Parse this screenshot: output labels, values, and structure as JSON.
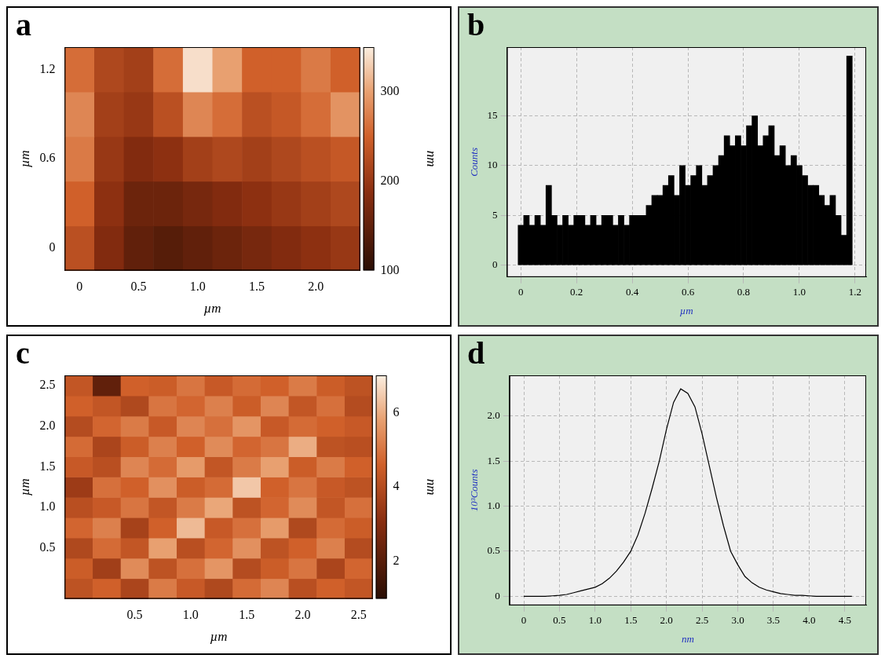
{
  "chart_data": [
    {
      "panel": "a",
      "type": "heatmap",
      "x": [
        0,
        0.25,
        0.5,
        0.75,
        1,
        1.25,
        1.5,
        1.75,
        2,
        2.25
      ],
      "y": [
        0,
        0.3,
        0.6,
        0.9,
        1.2
      ],
      "values": [
        [
          230,
          180,
          150,
          140,
          150,
          160,
          170,
          180,
          190,
          200
        ],
        [
          250,
          190,
          160,
          160,
          170,
          180,
          190,
          200,
          210,
          220
        ],
        [
          270,
          200,
          180,
          190,
          210,
          220,
          210,
          220,
          230,
          240
        ],
        [
          280,
          210,
          200,
          230,
          280,
          260,
          230,
          240,
          260,
          290
        ],
        [
          260,
          220,
          210,
          260,
          340,
          300,
          250,
          250,
          270,
          250
        ]
      ],
      "xlim": [
        -0.125,
        2.375
      ],
      "xticks": [
        0,
        0.5,
        {
          "value": 1,
          "label": "1.0"
        },
        1.5,
        {
          "value": 2,
          "label": "2.0"
        }
      ],
      "ylim": [
        -0.15,
        1.35
      ],
      "yticks": [
        0,
        0.6,
        1.2
      ],
      "x_label": "µm",
      "y_label": "µm",
      "colorbar": {
        "label": "nm",
        "range": [
          100,
          350
        ],
        "ticks": [
          100,
          200,
          300
        ]
      },
      "grid": false
    },
    {
      "panel": "b",
      "type": "bar",
      "x": [
        0,
        0.02,
        0.04,
        0.06,
        0.08,
        0.1,
        0.12,
        0.14,
        0.16,
        0.18,
        0.2,
        0.22,
        0.24,
        0.26,
        0.28,
        0.3,
        0.32,
        0.34,
        0.36,
        0.38,
        0.4,
        0.42,
        0.44,
        0.46,
        0.48,
        0.5,
        0.52,
        0.54,
        0.56,
        0.58,
        0.6,
        0.62,
        0.64,
        0.66,
        0.68,
        0.7,
        0.72,
        0.74,
        0.76,
        0.78,
        0.8,
        0.82,
        0.84,
        0.86,
        0.88,
        0.9,
        0.92,
        0.94,
        0.96,
        0.98,
        1,
        1.02,
        1.04,
        1.06,
        1.08,
        1.1,
        1.12,
        1.14,
        1.16,
        1.18
      ],
      "values": [
        4,
        5,
        4,
        5,
        4,
        8,
        5,
        4,
        5,
        4,
        5,
        5,
        4,
        5,
        4,
        5,
        5,
        4,
        5,
        4,
        5,
        5,
        5,
        6,
        7,
        7,
        8,
        9,
        7,
        10,
        8,
        9,
        10,
        8,
        9,
        10,
        11,
        13,
        12,
        13,
        12,
        14,
        15,
        12,
        13,
        14,
        11,
        12,
        10,
        11,
        10,
        9,
        8,
        8,
        7,
        6,
        7,
        5,
        3,
        21
      ],
      "color": "#000000",
      "xlim": [
        -0.05,
        1.24
      ],
      "xticks": [
        0,
        0.2,
        0.4,
        0.6,
        0.8,
        {
          "value": 1,
          "label": "1.0"
        },
        1.2
      ],
      "ylim": [
        -1.2,
        21.9
      ],
      "yticks": [
        0,
        5,
        10,
        15
      ],
      "x_label": "µm",
      "y_label": "Counts",
      "grid": true
    },
    {
      "panel": "c",
      "type": "heatmap",
      "x": [
        0,
        0.25,
        0.5,
        0.75,
        1,
        1.25,
        1.5,
        1.75,
        2,
        2.25,
        2.5
      ],
      "y": [
        0,
        0.25,
        0.5,
        0.75,
        1,
        1.25,
        1.5,
        1.75,
        2,
        2.25,
        2.5
      ],
      "values": [
        [
          4.2,
          4.6,
          3.8,
          5.1,
          4.4,
          3.9,
          4.8,
          5.3,
          4.1,
          4.6,
          4.3
        ],
        [
          4.5,
          3.6,
          5.4,
          4.2,
          4.9,
          5.6,
          4.0,
          4.5,
          5.0,
          3.8,
          4.7
        ],
        [
          3.9,
          4.8,
          4.3,
          5.8,
          4.1,
          4.7,
          5.5,
          4.2,
          4.6,
          5.2,
          4.0
        ],
        [
          4.7,
          5.2,
          3.7,
          4.6,
          6.2,
          4.4,
          4.9,
          5.7,
          3.9,
          4.8,
          4.5
        ],
        [
          4.1,
          4.4,
          5.0,
          4.3,
          5.1,
          5.9,
          4.2,
          4.7,
          5.4,
          4.3,
          4.9
        ],
        [
          3.5,
          4.9,
          4.6,
          5.5,
          4.5,
          4.8,
          6.4,
          4.6,
          5.0,
          4.4,
          4.2
        ],
        [
          4.4,
          4.1,
          5.3,
          4.8,
          5.7,
          4.3,
          5.1,
          5.8,
          4.5,
          5.1,
          4.6
        ],
        [
          4.8,
          3.8,
          4.5,
          5.2,
          4.6,
          5.4,
          4.7,
          5.0,
          6.0,
          4.2,
          4.1
        ],
        [
          4.0,
          4.7,
          5.1,
          4.4,
          5.3,
          4.9,
          5.6,
          4.4,
          4.8,
          4.6,
          4.4
        ],
        [
          4.6,
          4.3,
          3.9,
          5.0,
          4.7,
          5.2,
          4.5,
          5.3,
          4.3,
          4.9,
          4.0
        ],
        [
          4.3,
          2.2,
          4.6,
          4.5,
          5.0,
          4.4,
          4.8,
          4.6,
          5.1,
          4.5,
          4.2
        ]
      ],
      "xlim": [
        -0.125,
        2.625
      ],
      "xticks": [
        0.5,
        {
          "value": 1,
          "label": "1.0"
        },
        1.5,
        {
          "value": 2,
          "label": "2.0"
        },
        2.5
      ],
      "ylim": [
        -0.125,
        2.625
      ],
      "yticks": [
        0.5,
        {
          "value": 1,
          "label": "1.0"
        },
        1.5,
        {
          "value": 2,
          "label": "2.0"
        },
        2.5
      ],
      "x_label": "µm",
      "y_label": "µm",
      "colorbar": {
        "label": "nm",
        "range": [
          1,
          7
        ],
        "ticks": [
          2,
          4,
          6
        ]
      },
      "grid": false
    },
    {
      "panel": "d",
      "type": "line",
      "x": [
        0,
        0.1,
        0.2,
        0.3,
        0.4,
        0.5,
        0.6,
        0.7,
        0.8,
        0.9,
        1,
        1.1,
        1.2,
        1.3,
        1.4,
        1.5,
        1.6,
        1.7,
        1.8,
        1.9,
        2,
        2.1,
        2.2,
        2.3,
        2.4,
        2.5,
        2.6,
        2.7,
        2.8,
        2.9,
        3,
        3.1,
        3.2,
        3.3,
        3.4,
        3.5,
        3.6,
        3.7,
        3.8,
        3.9,
        4,
        4.1,
        4.2,
        4.3,
        4.4,
        4.5,
        4.6
      ],
      "values": [
        0,
        0,
        0,
        0,
        0.005,
        0.01,
        0.02,
        0.04,
        0.06,
        0.08,
        0.1,
        0.14,
        0.2,
        0.28,
        0.38,
        0.5,
        0.68,
        0.92,
        1.2,
        1.5,
        1.85,
        2.15,
        2.3,
        2.25,
        2.1,
        1.8,
        1.45,
        1.1,
        0.78,
        0.5,
        0.35,
        0.22,
        0.15,
        0.1,
        0.07,
        0.05,
        0.03,
        0.02,
        0.01,
        0.01,
        0.005,
        0,
        0,
        0,
        0,
        0,
        0
      ],
      "color": "#000000",
      "xlim": [
        -0.2,
        4.8
      ],
      "xticks": [
        0,
        0.5,
        {
          "value": 1,
          "label": "1.0"
        },
        1.5,
        {
          "value": 2,
          "label": "2.0"
        },
        2.5,
        {
          "value": 3,
          "label": "3.0"
        },
        3.5,
        {
          "value": 4,
          "label": "4.0"
        },
        4.5
      ],
      "ylim": [
        -0.1,
        2.45
      ],
      "yticks": [
        0,
        0.5,
        {
          "value": 1,
          "label": "1.0"
        },
        1.5,
        {
          "value": 2,
          "label": "2.0"
        }
      ],
      "x_label": "nm",
      "y_label": "10³Counts",
      "grid": true
    }
  ]
}
